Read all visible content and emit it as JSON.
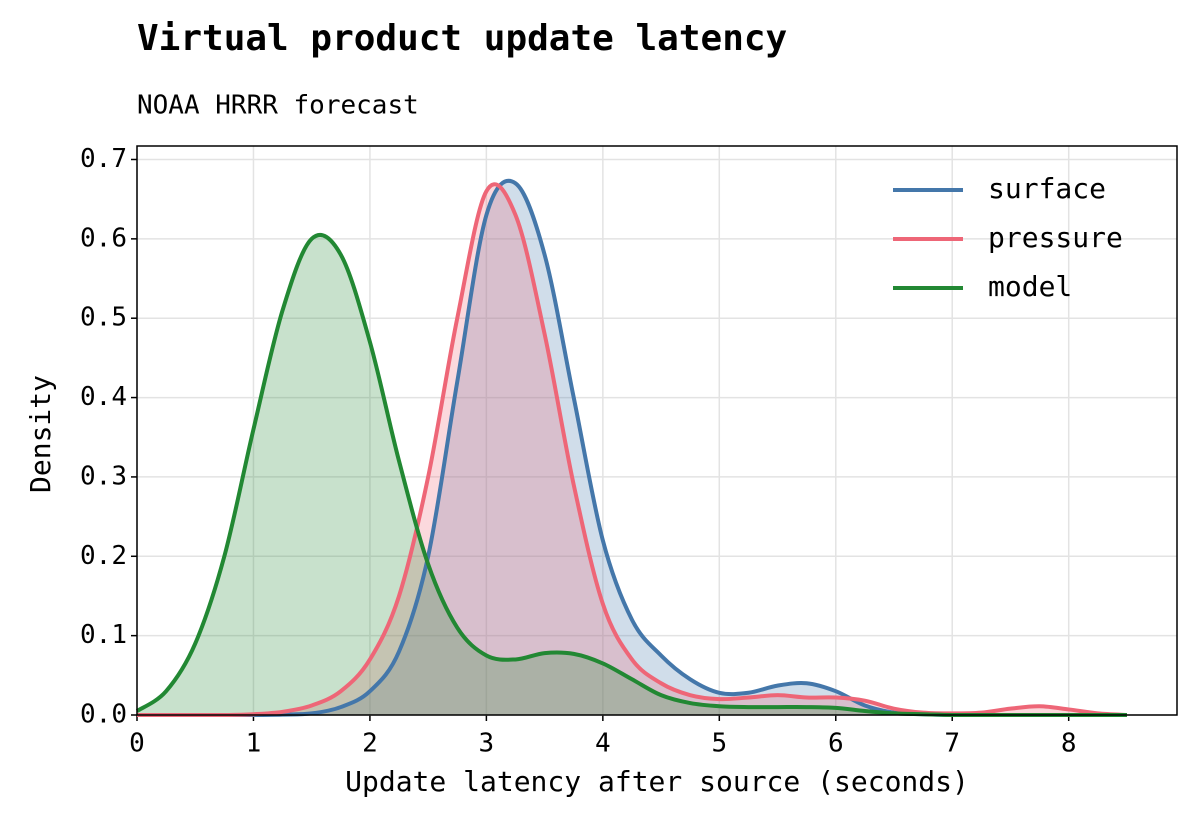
{
  "chart_data": {
    "type": "density",
    "title": "Virtual product update latency",
    "subtitle": "NOAA HRRR forecast",
    "x_label": "Update latency after source (seconds)",
    "y_label": "Density",
    "x": [
      0,
      0.25,
      0.5,
      0.75,
      1,
      1.25,
      1.5,
      1.75,
      2,
      2.25,
      2.5,
      2.75,
      3,
      3.25,
      3.5,
      3.75,
      4,
      4.25,
      4.5,
      4.75,
      5,
      5.25,
      5.5,
      5.75,
      6,
      6.25,
      6.5,
      6.75,
      7,
      7.25,
      7.5,
      7.75,
      8,
      8.25,
      8.5
    ],
    "series": [
      {
        "name": "surface",
        "color": "#4477aa",
        "values": [
          0,
          0,
          0,
          0,
          0,
          0.0005,
          0.002,
          0.01,
          0.03,
          0.08,
          0.2,
          0.42,
          0.63,
          0.67,
          0.58,
          0.4,
          0.22,
          0.12,
          0.075,
          0.045,
          0.028,
          0.028,
          0.037,
          0.04,
          0.03,
          0.012,
          0.003,
          0.001,
          0,
          0,
          0,
          0,
          0,
          0,
          0
        ]
      },
      {
        "name": "pressure",
        "color": "#ee6677",
        "values": [
          0,
          0,
          0,
          0,
          0.001,
          0.004,
          0.012,
          0.03,
          0.07,
          0.15,
          0.3,
          0.5,
          0.66,
          0.63,
          0.48,
          0.29,
          0.14,
          0.07,
          0.04,
          0.025,
          0.02,
          0.022,
          0.025,
          0.022,
          0.022,
          0.018,
          0.008,
          0.003,
          0.002,
          0.003,
          0.008,
          0.011,
          0.007,
          0.002,
          0
        ]
      },
      {
        "name": "model",
        "color": "#228833",
        "values": [
          0.005,
          0.03,
          0.09,
          0.2,
          0.36,
          0.51,
          0.6,
          0.58,
          0.47,
          0.32,
          0.19,
          0.11,
          0.075,
          0.07,
          0.078,
          0.077,
          0.065,
          0.045,
          0.025,
          0.015,
          0.011,
          0.01,
          0.01,
          0.01,
          0.009,
          0.005,
          0.002,
          0.001,
          0,
          0,
          0,
          0,
          0,
          0,
          0
        ]
      }
    ],
    "xlim": [
      0,
      8.93
    ],
    "ylim": [
      0,
      0.717
    ],
    "xticks": [
      0,
      1,
      2,
      3,
      4,
      5,
      6,
      7,
      8
    ],
    "yticks": [
      {
        "value": 0,
        "label": "0.0"
      },
      0.1,
      0.2,
      0.3,
      0.4,
      0.5,
      0.6,
      0.7
    ],
    "grid": true,
    "fill_alpha": 0.25,
    "legend": "upper right"
  }
}
